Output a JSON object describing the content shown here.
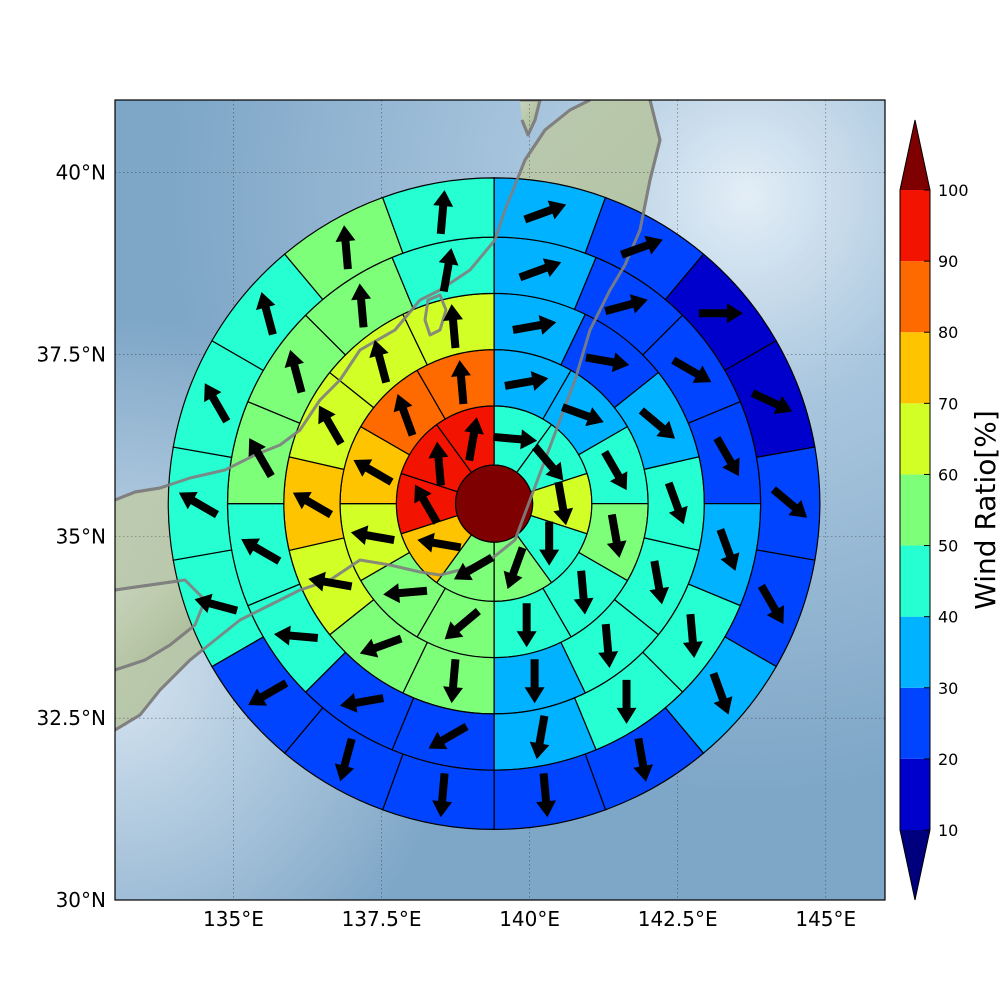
{
  "map": {
    "lon_range": [
      133.0,
      146.0
    ],
    "lat_range": [
      30.0,
      41.0
    ],
    "x_ticks": [
      {
        "value": 135.0,
        "label": "135°E"
      },
      {
        "value": 137.5,
        "label": "137.5°E"
      },
      {
        "value": 140.0,
        "label": "140°E"
      },
      {
        "value": 142.5,
        "label": "142.5°E"
      },
      {
        "value": 145.0,
        "label": "145°E"
      }
    ],
    "y_ticks": [
      {
        "value": 30.0,
        "label": "30°N"
      },
      {
        "value": 32.5,
        "label": "32.5°N"
      },
      {
        "value": 35.0,
        "label": "35°N"
      },
      {
        "value": 37.5,
        "label": "37.5°N"
      },
      {
        "value": 40.0,
        "label": "40°N"
      }
    ],
    "gridlines": true,
    "projection": "PlateCarree",
    "background": "shaded relief with ocean",
    "coastline_color": "#808080"
  },
  "colorbar": {
    "label": "Wind Ratio[%]",
    "ticks": [
      "10",
      "20",
      "30",
      "40",
      "50",
      "60",
      "70",
      "80",
      "90",
      "100"
    ],
    "colors": [
      "#0000cd",
      "#0044ff",
      "#00b2ff",
      "#26ffd2",
      "#7dff7a",
      "#d2ff26",
      "#ffc400",
      "#ff6a00",
      "#f21300"
    ],
    "under_color": "#00007f",
    "over_color": "#7f0000",
    "extend": "both"
  },
  "chart_data": {
    "type": "polar_sector_map",
    "center": [
      139.4,
      35.45
    ],
    "ring_edges_deg": [
      0.65,
      1.65,
      2.6,
      3.55,
      4.5,
      5.5
    ],
    "center_value": 105,
    "sector_bearings_deg": [
      0,
      36,
      72,
      108,
      144,
      180,
      216,
      252,
      288,
      324
    ],
    "ring_sector_values": [
      [
        45,
        45,
        62,
        45,
        55,
        55,
        75,
        92,
        92,
        92
      ],
      [
        35,
        35,
        45,
        50,
        45,
        45,
        58,
        58,
        68,
        75,
        88,
        88
      ],
      [
        35,
        25,
        35,
        40,
        40,
        40,
        35,
        55,
        50,
        65,
        72,
        68,
        65,
        62
      ],
      [
        35,
        25,
        25,
        25,
        30,
        40,
        40,
        35,
        25,
        25,
        45,
        45,
        55,
        55,
        55,
        45
      ],
      [
        35,
        20,
        15,
        15,
        20,
        25,
        30,
        25,
        25,
        25,
        20,
        20,
        40,
        45,
        45,
        45,
        55,
        45
      ],
      [
        35,
        15,
        15,
        15,
        15,
        25,
        30,
        35,
        30,
        25,
        20,
        15,
        25,
        15,
        30,
        45,
        45,
        45,
        55,
        45
      ]
    ],
    "arrow_bearings_deg": [
      [
        95,
        140,
        170,
        180,
        200,
        240,
        280,
        330,
        355,
        10
      ],
      [
        80,
        110,
        150,
        170,
        175,
        180,
        230,
        265,
        280,
        300,
        340,
        355
      ],
      [
        80,
        100,
        130,
        160,
        170,
        175,
        180,
        185,
        250,
        280,
        300,
        330,
        345,
        355
      ],
      [
        70,
        75,
        120,
        150,
        160,
        175,
        180,
        190,
        240,
        260,
        275,
        300,
        330,
        345,
        355,
        10
      ],
      [
        70,
        70,
        90,
        115,
        130,
        150,
        160,
        170,
        175,
        185,
        195,
        240,
        285,
        300,
        330,
        345,
        355,
        5
      ],
      [
        70,
        60,
        80,
        95,
        150,
        160,
        175,
        180,
        185,
        195,
        215,
        235,
        285,
        300,
        330,
        345,
        355,
        5,
        15,
        30
      ]
    ]
  }
}
